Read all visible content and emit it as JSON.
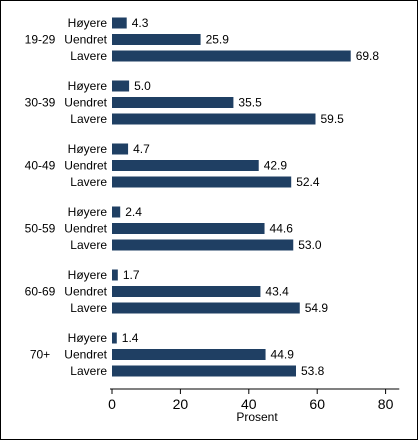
{
  "chart_data": {
    "type": "bar",
    "orientation": "horizontal",
    "xlabel": "Prosent",
    "xlim": [
      0,
      84
    ],
    "xticks": [
      0,
      20,
      40,
      60,
      80
    ],
    "grid": false,
    "groups": [
      {
        "label": "19-29",
        "bars": [
          {
            "category": "Høyere",
            "value": 4.3,
            "value_label": "4.3"
          },
          {
            "category": "Uendret",
            "value": 25.9,
            "value_label": "25.9"
          },
          {
            "category": "Lavere",
            "value": 69.8,
            "value_label": "69.8"
          }
        ]
      },
      {
        "label": "30-39",
        "bars": [
          {
            "category": "Høyere",
            "value": 5.0,
            "value_label": "5.0"
          },
          {
            "category": "Uendret",
            "value": 35.5,
            "value_label": "35.5"
          },
          {
            "category": "Lavere",
            "value": 59.5,
            "value_label": "59.5"
          }
        ]
      },
      {
        "label": "40-49",
        "bars": [
          {
            "category": "Høyere",
            "value": 4.7,
            "value_label": "4.7"
          },
          {
            "category": "Uendret",
            "value": 42.9,
            "value_label": "42.9"
          },
          {
            "category": "Lavere",
            "value": 52.4,
            "value_label": "52.4"
          }
        ]
      },
      {
        "label": "50-59",
        "bars": [
          {
            "category": "Høyere",
            "value": 2.4,
            "value_label": "2.4"
          },
          {
            "category": "Uendret",
            "value": 44.6,
            "value_label": "44.6"
          },
          {
            "category": "Lavere",
            "value": 53.0,
            "value_label": "53.0"
          }
        ]
      },
      {
        "label": "60-69",
        "bars": [
          {
            "category": "Høyere",
            "value": 1.7,
            "value_label": "1.7"
          },
          {
            "category": "Uendret",
            "value": 43.4,
            "value_label": "43.4"
          },
          {
            "category": "Lavere",
            "value": 54.9,
            "value_label": "54.9"
          }
        ]
      },
      {
        "label": "70+",
        "bars": [
          {
            "category": "Høyere",
            "value": 1.4,
            "value_label": "1.4"
          },
          {
            "category": "Uendret",
            "value": 44.9,
            "value_label": "44.9"
          },
          {
            "category": "Lavere",
            "value": 53.8,
            "value_label": "53.8"
          }
        ]
      }
    ]
  },
  "colors": {
    "bar": "#1f3f63",
    "axis": "#000000",
    "frame": "#000000",
    "background": "#ffffff"
  }
}
